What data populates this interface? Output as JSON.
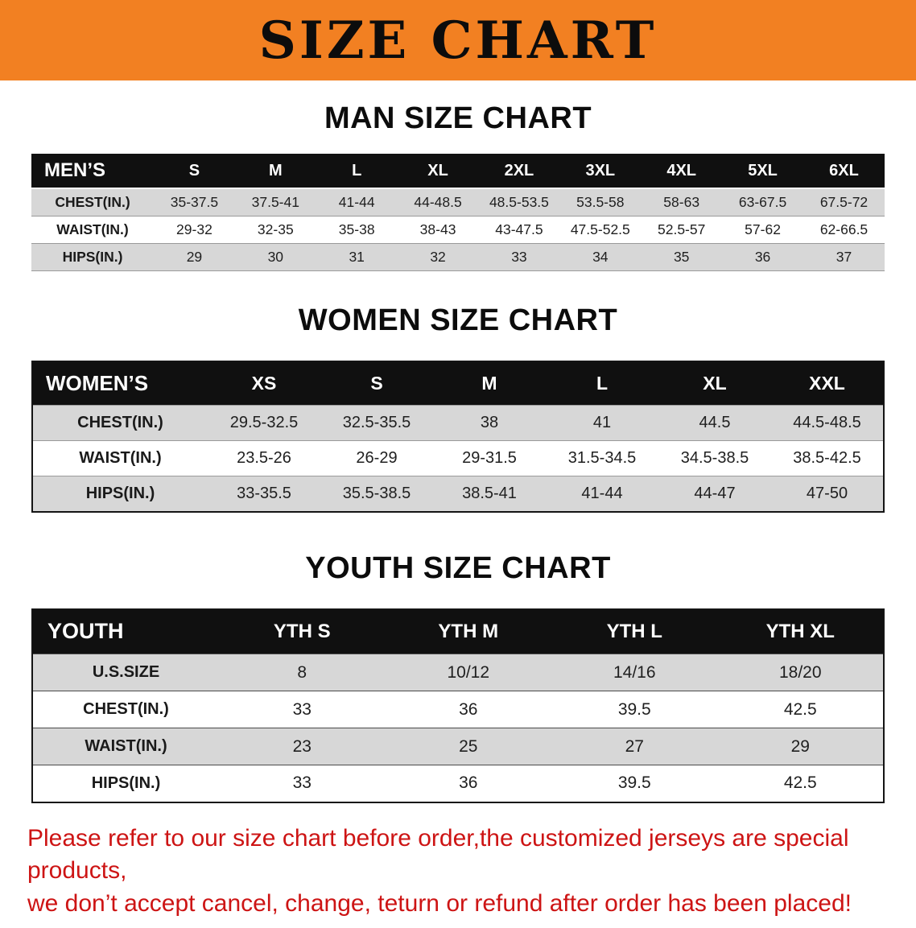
{
  "banner": {
    "title": "SIZE CHART",
    "bg_color": "#f28022"
  },
  "sections": [
    {
      "id": "men",
      "title": "MAN SIZE CHART",
      "table": {
        "header": [
          "MEN’S",
          "S",
          "M",
          "L",
          "XL",
          "2XL",
          "3XL",
          "4XL",
          "5XL",
          "6XL"
        ],
        "rows": [
          [
            "CHEST(IN.)",
            "35-37.5",
            "37.5-41",
            "41-44",
            "44-48.5",
            "48.5-53.5",
            "53.5-58",
            "58-63",
            "63-67.5",
            "67.5-72"
          ],
          [
            "WAIST(IN.)",
            "29-32",
            "32-35",
            "35-38",
            "38-43",
            "43-47.5",
            "47.5-52.5",
            "52.5-57",
            "57-62",
            "62-66.5"
          ],
          [
            "HIPS(IN.)",
            "29",
            "30",
            "31",
            "32",
            "33",
            "34",
            "35",
            "36",
            "37"
          ]
        ]
      }
    },
    {
      "id": "women",
      "title": "WOMEN SIZE CHART",
      "table": {
        "header": [
          "WOMEN’S",
          "XS",
          "S",
          "M",
          "L",
          "XL",
          "XXL"
        ],
        "rows": [
          [
            "CHEST(IN.)",
            "29.5-32.5",
            "32.5-35.5",
            "38",
            "41",
            "44.5",
            "44.5-48.5"
          ],
          [
            "WAIST(IN.)",
            "23.5-26",
            "26-29",
            "29-31.5",
            "31.5-34.5",
            "34.5-38.5",
            "38.5-42.5"
          ],
          [
            "HIPS(IN.)",
            "33-35.5",
            "35.5-38.5",
            "38.5-41",
            "41-44",
            "44-47",
            "47-50"
          ]
        ]
      }
    },
    {
      "id": "youth",
      "title": "YOUTH SIZE CHART",
      "table": {
        "header": [
          "YOUTH",
          "YTH S",
          "YTH M",
          "YTH L",
          "YTH XL"
        ],
        "rows": [
          [
            "U.S.SIZE",
            "8",
            "10/12",
            "14/16",
            "18/20"
          ],
          [
            "CHEST(IN.)",
            "33",
            "36",
            "39.5",
            "42.5"
          ],
          [
            "WAIST(IN.)",
            "23",
            "25",
            "27",
            "29"
          ],
          [
            "HIPS(IN.)",
            "33",
            "36",
            "39.5",
            "42.5"
          ]
        ]
      }
    }
  ],
  "footer": {
    "line1": "Please refer to our size chart before order,the customized jerseys are special products,",
    "line2": "we don’t accept cancel, change, teturn or refund after order has been placed!",
    "text_color": "#cd1414"
  }
}
